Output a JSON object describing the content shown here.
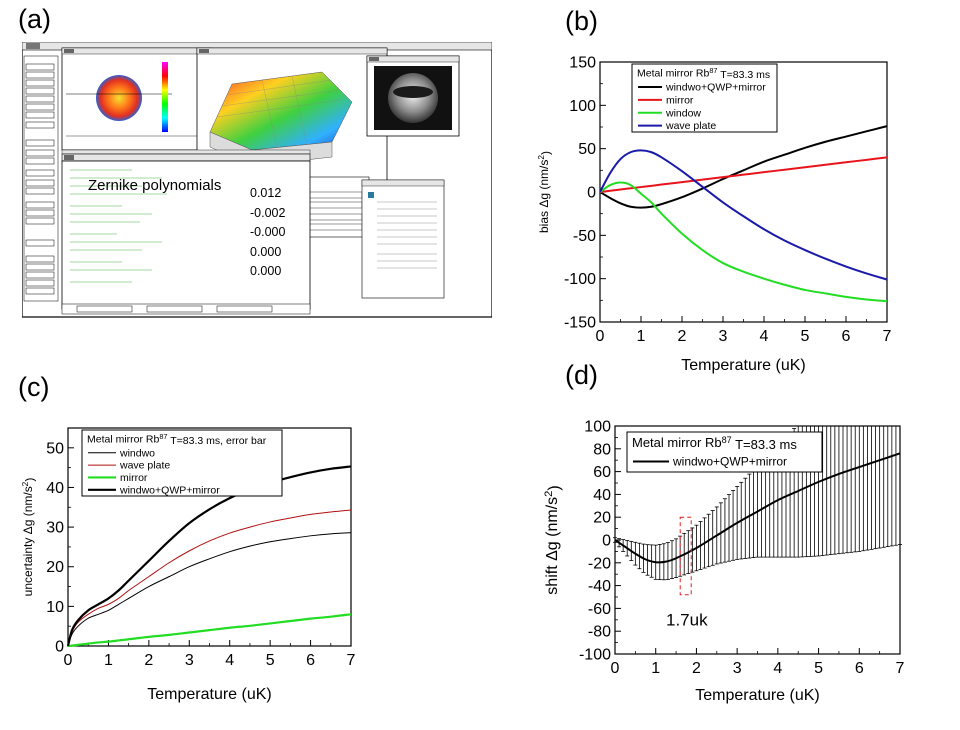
{
  "panel_labels": {
    "a": "(a)",
    "b": "(b)",
    "c": "(c)",
    "d": "(d)"
  },
  "software_panel": {
    "zernike_title": "Zernike polynomials",
    "zernike_values": [
      "0.012",
      "-0.002",
      "-0.000",
      "0.000",
      "0.000"
    ]
  },
  "chart_data": [
    {
      "id": "b",
      "type": "line",
      "title": "",
      "legend_title": "Metal mirror Rb87 T=83.3 ms",
      "xlabel": "Temperature (uK)",
      "ylabel": "bias Δg (nm/s2)",
      "xlim": [
        0,
        7
      ],
      "ylim": [
        -150,
        150
      ],
      "xticks": [
        "0",
        "1",
        "2",
        "3",
        "4",
        "5",
        "6",
        "7"
      ],
      "yticks": [
        "150",
        "100",
        "50",
        "0",
        "-50",
        "-100",
        "-150"
      ],
      "x": [
        0,
        0.25,
        0.5,
        0.75,
        1,
        1.25,
        1.5,
        2,
        2.5,
        3,
        3.5,
        4,
        4.5,
        5,
        5.5,
        6,
        6.5,
        7
      ],
      "series": [
        {
          "name": "windwo+QWP+mirror",
          "color": "#000000",
          "values": [
            0,
            -7,
            -13,
            -17,
            -18,
            -17,
            -14,
            -6,
            4,
            15,
            25,
            35,
            43,
            51,
            58,
            64,
            70,
            76
          ]
        },
        {
          "name": "mirror",
          "color": "#e8141c",
          "values": [
            0,
            1.4,
            2.9,
            4.3,
            5.7,
            7.1,
            8.6,
            11.4,
            14.3,
            17.1,
            20,
            22.9,
            25.7,
            28.6,
            31.4,
            34.3,
            37.1,
            40
          ]
        },
        {
          "name": "window",
          "color": "#22dd22",
          "values": [
            0,
            8,
            11,
            8,
            -2,
            -12,
            -25,
            -48,
            -67,
            -82,
            -92,
            -100,
            -107,
            -113,
            -117,
            -121,
            -124,
            -126
          ]
        },
        {
          "name": "wave plate",
          "color": "#1a1aaa",
          "values": [
            0,
            22,
            38,
            46,
            48,
            46,
            40,
            24,
            6,
            -12,
            -28,
            -43,
            -56,
            -67,
            -77,
            -86,
            -94,
            -101
          ]
        }
      ]
    },
    {
      "id": "c",
      "type": "line",
      "title": "",
      "legend_title": "Metal mirror Rb87 T=83.3 ms, error bar",
      "xlabel": "Temperature (uK)",
      "ylabel": "uncertainty Δg (nm/s2)",
      "xlim": [
        0,
        7
      ],
      "ylim": [
        0,
        55
      ],
      "xticks": [
        "0",
        "1",
        "2",
        "3",
        "4",
        "5",
        "6",
        "7"
      ],
      "yticks": [
        "0",
        "10",
        "20",
        "30",
        "40",
        "50"
      ],
      "x": [
        0,
        0.1,
        0.25,
        0.5,
        0.75,
        1,
        1.25,
        1.5,
        2,
        2.5,
        3,
        3.5,
        4,
        4.5,
        5,
        5.5,
        6,
        6.5,
        7
      ],
      "series": [
        {
          "name": "windwo",
          "color": "#000000",
          "width": 1,
          "values": [
            0,
            3,
            5,
            7,
            8,
            9,
            10.5,
            12,
            15,
            17.5,
            20,
            22,
            23.8,
            25.2,
            26.3,
            27.1,
            27.8,
            28.3,
            28.6
          ]
        },
        {
          "name": "wave plate",
          "color": "#b01010",
          "width": 1,
          "values": [
            0,
            3.5,
            6,
            8,
            9.5,
            10.5,
            12,
            14,
            17.5,
            21,
            24,
            26.5,
            28.5,
            30,
            31.3,
            32.3,
            33.2,
            33.8,
            34.3
          ]
        },
        {
          "name": "mirror",
          "color": "#22dd22",
          "width": 2.2,
          "values": [
            0,
            0.1,
            0.3,
            0.6,
            0.9,
            1.1,
            1.4,
            1.7,
            2.3,
            2.8,
            3.4,
            4,
            4.6,
            5.1,
            5.7,
            6.3,
            6.9,
            7.4,
            8
          ]
        },
        {
          "name": "windwo+QWP+mirror",
          "color": "#000000",
          "width": 2.2,
          "values": [
            0,
            4,
            6.5,
            9,
            10.5,
            12,
            14,
            16.5,
            21.5,
            26.5,
            31,
            34.5,
            37.3,
            39.5,
            41.2,
            42.6,
            43.8,
            44.7,
            45.3
          ]
        }
      ]
    },
    {
      "id": "d",
      "type": "line",
      "title": "",
      "legend_title": "Metal mirror Rb87 T=83.3 ms",
      "xlabel": "Temperature (uK)",
      "ylabel": "shift Δg (nm/s2)",
      "xlim": [
        0,
        7
      ],
      "ylim": [
        -100,
        100
      ],
      "xticks": [
        "0",
        "1",
        "2",
        "3",
        "4",
        "5",
        "6",
        "7"
      ],
      "yticks": [
        "100",
        "80",
        "60",
        "40",
        "20",
        "0",
        "-20",
        "-40",
        "-60",
        "-80",
        "-100"
      ],
      "annotation": "1.7uk",
      "annotation_x": 1.7,
      "x": [
        0,
        0.25,
        0.5,
        0.75,
        1,
        1.25,
        1.5,
        2,
        2.5,
        3,
        3.5,
        4,
        4.5,
        5,
        5.5,
        6,
        6.5,
        7
      ],
      "series": [
        {
          "name": "windwo+QWP+mirror",
          "color": "#000000",
          "values": [
            0,
            -6,
            -12,
            -17,
            -19.5,
            -19,
            -16,
            -7,
            4,
            15,
            25,
            35,
            43,
            51,
            58,
            64,
            70,
            76
          ],
          "error": [
            2,
            6,
            10,
            13,
            15,
            16,
            17,
            20,
            25,
            32,
            40,
            50,
            58,
            65,
            70,
            74,
            77,
            80
          ]
        }
      ]
    }
  ]
}
